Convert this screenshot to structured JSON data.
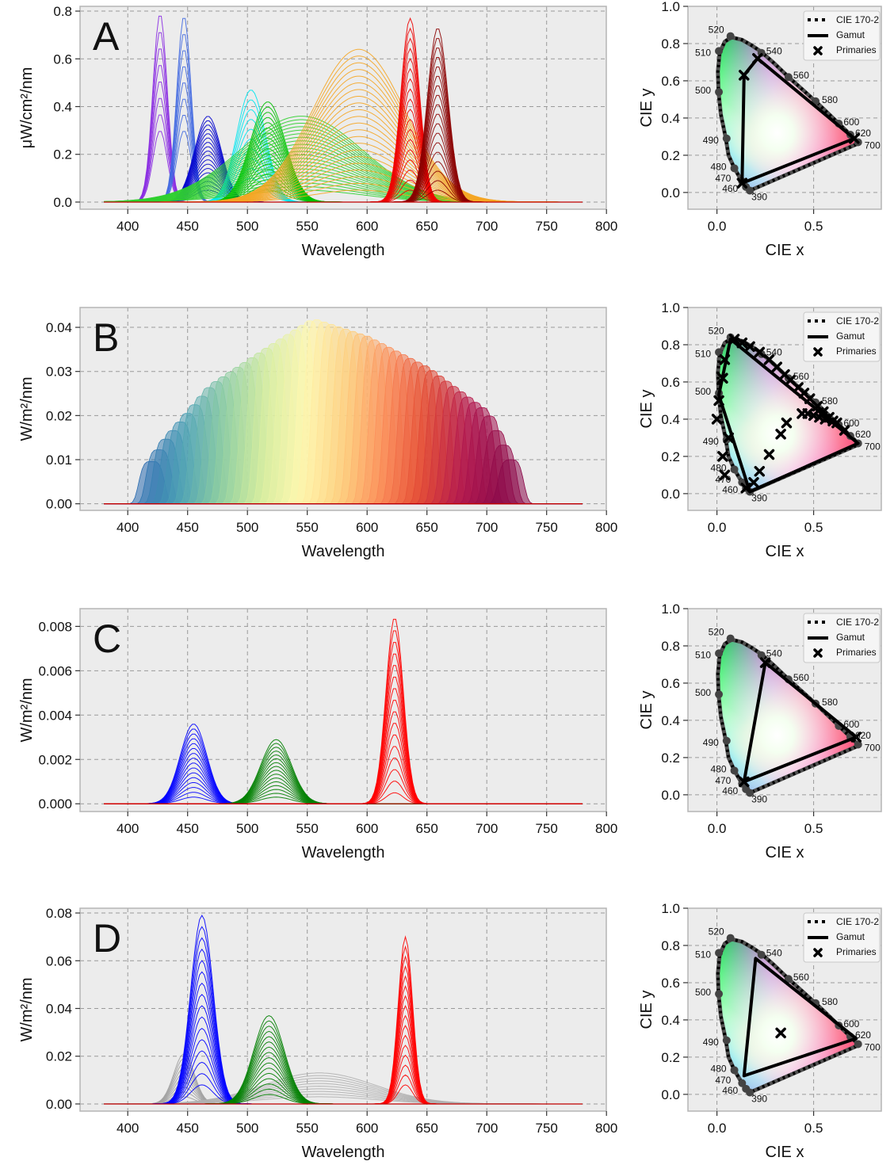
{
  "figure": {
    "rows": [
      {
        "letter": "A",
        "spectrum": {
          "type": "line",
          "xlabel": "Wavelength",
          "ylabel": "μW/cm²/nm",
          "xlim": [
            380,
            780
          ],
          "ylim": [
            -0.03,
            0.82
          ],
          "xticks": [
            400,
            450,
            500,
            550,
            600,
            650,
            700,
            750,
            800
          ],
          "yticks": [
            0.0,
            0.2,
            0.4,
            0.6,
            0.8
          ],
          "ytick_labels": [
            "0.0",
            "0.2",
            "0.4",
            "0.6",
            "0.8"
          ],
          "families": [
            {
              "color": "#8a2be2",
              "peak_nm": 427,
              "fwhm_nm": 14,
              "max": 0.79,
              "min": 0.3,
              "count": 8
            },
            {
              "color": "#4169e1",
              "peak_nm": 447,
              "fwhm_nm": 14,
              "max": 0.78,
              "min": 0.3,
              "count": 8
            },
            {
              "color": "#0000cd",
              "peak_nm": 467,
              "fwhm_nm": 26,
              "max": 0.36,
              "min": 0.05,
              "count": 18
            },
            {
              "color": "#00e5ee",
              "peak_nm": 503,
              "fwhm_nm": 28,
              "max": 0.47,
              "min": 0.1,
              "count": 10
            },
            {
              "color": "#00c000",
              "peak_nm": 517,
              "fwhm_nm": 34,
              "max": 0.42,
              "min": 0.05,
              "count": 18
            },
            {
              "color": "#30d030",
              "peak_nm": 545,
              "fwhm_nm": 120,
              "max": 0.36,
              "min": 0.05,
              "count": 22
            },
            {
              "color": "#f5a623",
              "peak_nm": 593,
              "fwhm_nm": 90,
              "max": 0.64,
              "min": 0.05,
              "count": 22
            },
            {
              "color": "#ee0000",
              "peak_nm": 636,
              "fwhm_nm": 18,
              "max": 0.77,
              "min": 0.05,
              "count": 18
            },
            {
              "color": "#8b0000",
              "peak_nm": 659,
              "fwhm_nm": 20,
              "max": 0.73,
              "min": 0.05,
              "count": 18
            }
          ]
        },
        "cie": {
          "gamut": [
            [
              0.71,
              0.29
            ],
            [
              0.21,
              0.72
            ],
            [
              0.14,
              0.63
            ],
            [
              0.13,
              0.05
            ]
          ],
          "primaries": [
            [
              0.71,
              0.29
            ],
            [
              0.21,
              0.72
            ],
            [
              0.14,
              0.63
            ],
            [
              0.13,
              0.05
            ]
          ],
          "primaries_on_locus": true
        }
      },
      {
        "letter": "B",
        "spectrum": {
          "type": "line",
          "xlabel": "Wavelength",
          "ylabel": "W/m²/nm",
          "xlim": [
            380,
            780
          ],
          "ylim": [
            -0.0015,
            0.0445
          ],
          "xticks": [
            400,
            450,
            500,
            550,
            600,
            650,
            700,
            750,
            800
          ],
          "yticks": [
            0.0,
            0.01,
            0.02,
            0.03,
            0.04
          ],
          "ytick_labels": [
            "0.00",
            "0.01",
            "0.02",
            "0.03",
            "0.04"
          ],
          "comb": {
            "start_nm": 420,
            "end_nm": 720,
            "step_nm": 6,
            "width_nm": 10,
            "envelope": [
              [
                405,
                0.003
              ],
              [
                430,
                0.014
              ],
              [
                470,
                0.027
              ],
              [
                520,
                0.036
              ],
              [
                555,
                0.042
              ],
              [
                600,
                0.038
              ],
              [
                650,
                0.031
              ],
              [
                700,
                0.021
              ],
              [
                720,
                0.01
              ]
            ],
            "colormap": [
              "#2b6cb0",
              "#4ea3b5",
              "#8fcfa0",
              "#d7ee9f",
              "#fff7b0",
              "#fed17f",
              "#fc8d59",
              "#e34a33",
              "#b3174e",
              "#8b0a4a"
            ]
          }
        },
        "cie": {
          "gamut": [
            [
              0.73,
              0.27
            ],
            [
              0.07,
              0.83
            ],
            [
              0.01,
              0.53
            ],
            [
              0.17,
              0.01
            ]
          ],
          "primaries": [
            [
              0.09,
              0.83
            ],
            [
              0.13,
              0.81
            ],
            [
              0.17,
              0.79
            ],
            [
              0.22,
              0.76
            ],
            [
              0.27,
              0.72
            ],
            [
              0.31,
              0.68
            ],
            [
              0.35,
              0.64
            ],
            [
              0.38,
              0.61
            ],
            [
              0.42,
              0.57
            ],
            [
              0.45,
              0.54
            ],
            [
              0.48,
              0.51
            ],
            [
              0.52,
              0.47
            ],
            [
              0.55,
              0.44
            ],
            [
              0.58,
              0.41
            ],
            [
              0.62,
              0.38
            ],
            [
              0.66,
              0.34
            ],
            [
              0.44,
              0.43
            ],
            [
              0.47,
              0.43
            ],
            [
              0.5,
              0.42
            ],
            [
              0.53,
              0.41
            ],
            [
              0.56,
              0.4
            ],
            [
              0.6,
              0.39
            ],
            [
              0.36,
              0.38
            ],
            [
              0.33,
              0.32
            ],
            [
              0.27,
              0.21
            ],
            [
              0.22,
              0.12
            ],
            [
              0.19,
              0.06
            ],
            [
              0.15,
              0.03
            ],
            [
              0.04,
              0.1
            ],
            [
              0.03,
              0.2
            ],
            [
              0.06,
              0.3
            ],
            [
              0.0,
              0.4
            ],
            [
              0.01,
              0.5
            ],
            [
              0.03,
              0.62
            ],
            [
              0.04,
              0.72
            ]
          ],
          "primaries_on_locus": false
        }
      },
      {
        "letter": "C",
        "spectrum": {
          "type": "line",
          "xlabel": "Wavelength",
          "ylabel": "W/m²/nm",
          "xlim": [
            380,
            780
          ],
          "ylim": [
            -0.00035,
            0.0088
          ],
          "xticks": [
            400,
            450,
            500,
            550,
            600,
            650,
            700,
            750,
            800
          ],
          "yticks": [
            0.0,
            0.002,
            0.004,
            0.006,
            0.008
          ],
          "ytick_labels": [
            "0.000",
            "0.002",
            "0.004",
            "0.006",
            "0.008"
          ],
          "families": [
            {
              "color": "#0000ff",
              "peak_nm": 455,
              "fwhm_nm": 26,
              "max": 0.0036,
              "min": 0.0003,
              "count": 16
            },
            {
              "color": "#008000",
              "peak_nm": 524,
              "fwhm_nm": 30,
              "max": 0.0029,
              "min": 0.0003,
              "count": 16
            },
            {
              "color": "#ff0000",
              "peak_nm": 623,
              "fwhm_nm": 17,
              "max": 0.0084,
              "min": 0.0005,
              "count": 16
            }
          ]
        },
        "cie": {
          "gamut": [
            [
              0.72,
              0.31
            ],
            [
              0.25,
              0.71
            ],
            [
              0.14,
              0.07
            ]
          ],
          "primaries": [
            [
              0.72,
              0.31
            ],
            [
              0.25,
              0.71
            ],
            [
              0.14,
              0.07
            ]
          ],
          "primaries_on_locus": true
        }
      },
      {
        "letter": "D",
        "spectrum": {
          "type": "line",
          "xlabel": "Wavelength",
          "ylabel": "W/m²/nm",
          "xlim": [
            380,
            780
          ],
          "ylim": [
            -0.003,
            0.082
          ],
          "xticks": [
            400,
            450,
            500,
            550,
            600,
            650,
            700,
            750,
            800
          ],
          "yticks": [
            0.0,
            0.02,
            0.04,
            0.06,
            0.08
          ],
          "ytick_labels": [
            "0.00",
            "0.02",
            "0.04",
            "0.06",
            "0.08"
          ],
          "families": [
            {
              "color": "#a0a0a0",
              "peak_nm": 447,
              "fwhm_nm": 20,
              "max": 0.021,
              "min": 0.003,
              "count": 10
            },
            {
              "color": "#b0b0b0",
              "peak_nm": 560,
              "fwhm_nm": 110,
              "max": 0.013,
              "min": 0.003,
              "count": 10
            },
            {
              "color": "#0000ff",
              "peak_nm": 462,
              "fwhm_nm": 22,
              "max": 0.079,
              "min": 0.008,
              "count": 16
            },
            {
              "color": "#008000",
              "peak_nm": 518,
              "fwhm_nm": 30,
              "max": 0.037,
              "min": 0.004,
              "count": 16
            },
            {
              "color": "#ff0000",
              "peak_nm": 632,
              "fwhm_nm": 14,
              "max": 0.07,
              "min": 0.008,
              "count": 16
            }
          ]
        },
        "cie": {
          "gamut": [
            [
              0.72,
              0.3
            ],
            [
              0.2,
              0.73
            ],
            [
              0.14,
              0.1
            ]
          ],
          "primaries": [
            [
              0.33,
              0.33
            ]
          ],
          "primaries_on_locus": false
        }
      }
    ],
    "cie_axes": {
      "xlabel": "CIE x",
      "ylabel": "CIE y",
      "xlim": [
        -0.15,
        0.85
      ],
      "ylim": [
        -0.09,
        1.0
      ],
      "xticks": [
        0.0,
        0.5
      ],
      "xtick_labels": [
        "0.0",
        "0.5"
      ],
      "yticks": [
        0.0,
        0.2,
        0.4,
        0.6,
        0.8,
        1.0
      ],
      "ytick_labels": [
        "0.0",
        "0.2",
        "0.4",
        "0.6",
        "0.8",
        "1.0"
      ],
      "legend": [
        "CIE 170-2",
        "Gamut",
        "Primaries"
      ],
      "wavelength_labels": [
        {
          "nm": "390",
          "x": 0.17,
          "y": 0.01
        },
        {
          "nm": "460",
          "x": 0.15,
          "y": 0.03
        },
        {
          "nm": "470",
          "x": 0.13,
          "y": 0.06
        },
        {
          "nm": "480",
          "x": 0.09,
          "y": 0.13
        },
        {
          "nm": "490",
          "x": 0.05,
          "y": 0.29
        },
        {
          "nm": "500",
          "x": 0.01,
          "y": 0.54
        },
        {
          "nm": "510",
          "x": 0.01,
          "y": 0.76
        },
        {
          "nm": "520",
          "x": 0.07,
          "y": 0.84
        },
        {
          "nm": "540",
          "x": 0.23,
          "y": 0.75
        },
        {
          "nm": "560",
          "x": 0.37,
          "y": 0.62
        },
        {
          "nm": "580",
          "x": 0.51,
          "y": 0.49
        },
        {
          "nm": "600",
          "x": 0.63,
          "y": 0.37
        },
        {
          "nm": "620",
          "x": 0.69,
          "y": 0.31
        },
        {
          "nm": "700",
          "x": 0.73,
          "y": 0.27
        }
      ],
      "locus": [
        [
          0.17,
          0.01
        ],
        [
          0.174,
          0.005
        ],
        [
          0.172,
          0.005
        ],
        [
          0.168,
          0.012
        ],
        [
          0.155,
          0.025
        ],
        [
          0.13,
          0.06
        ],
        [
          0.09,
          0.13
        ],
        [
          0.06,
          0.2
        ],
        [
          0.045,
          0.295
        ],
        [
          0.02,
          0.42
        ],
        [
          0.008,
          0.54
        ],
        [
          0.005,
          0.65
        ],
        [
          0.014,
          0.75
        ],
        [
          0.04,
          0.81
        ],
        [
          0.075,
          0.834
        ],
        [
          0.13,
          0.82
        ],
        [
          0.18,
          0.79
        ],
        [
          0.23,
          0.755
        ],
        [
          0.3,
          0.69
        ],
        [
          0.37,
          0.62
        ],
        [
          0.44,
          0.555
        ],
        [
          0.51,
          0.49
        ],
        [
          0.58,
          0.42
        ],
        [
          0.64,
          0.36
        ],
        [
          0.69,
          0.31
        ],
        [
          0.72,
          0.28
        ],
        [
          0.735,
          0.265
        ]
      ]
    }
  }
}
